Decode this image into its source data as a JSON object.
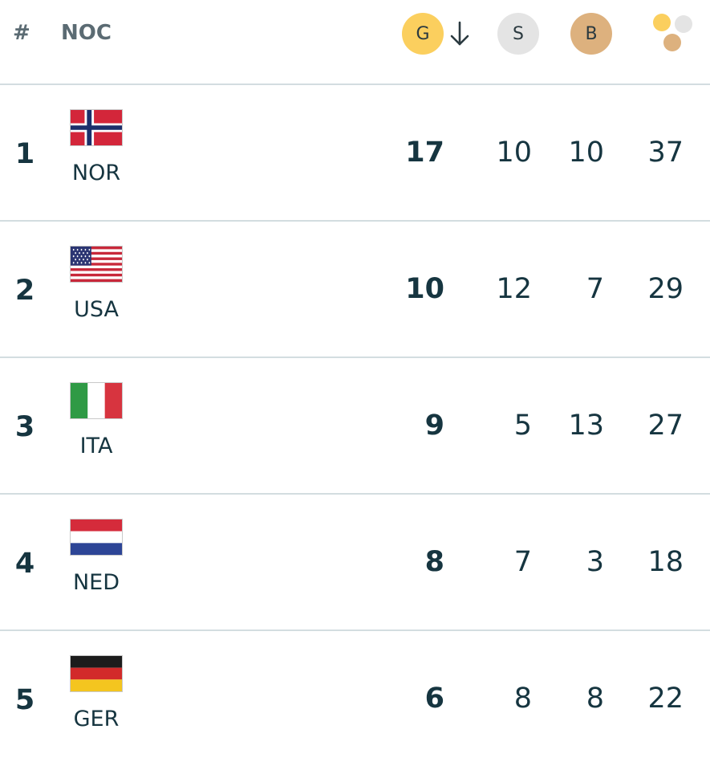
{
  "header": {
    "rank_label": "#",
    "noc_label": "NOC",
    "gold_label": "G",
    "silver_label": "S",
    "bronze_label": "B",
    "sort_icon": "arrow-down-icon",
    "total_icon": "medals-total-icon",
    "colors": {
      "gold": "#fbcf5e",
      "silver": "#e4e4e4",
      "bronze": "#ddb17e"
    }
  },
  "rows": [
    {
      "rank": "1",
      "code": "NOR",
      "flag": "flag-norway",
      "gold": "17",
      "silver": "10",
      "bronze": "10",
      "total": "37"
    },
    {
      "rank": "2",
      "code": "USA",
      "flag": "flag-usa",
      "gold": "10",
      "silver": "12",
      "bronze": "7",
      "total": "29"
    },
    {
      "rank": "3",
      "code": "ITA",
      "flag": "flag-italy",
      "gold": "9",
      "silver": "5",
      "bronze": "13",
      "total": "27"
    },
    {
      "rank": "4",
      "code": "NED",
      "flag": "flag-netherlands",
      "gold": "8",
      "silver": "7",
      "bronze": "3",
      "total": "18"
    },
    {
      "rank": "5",
      "code": "GER",
      "flag": "flag-germany",
      "gold": "6",
      "silver": "8",
      "bronze": "8",
      "total": "22"
    }
  ]
}
